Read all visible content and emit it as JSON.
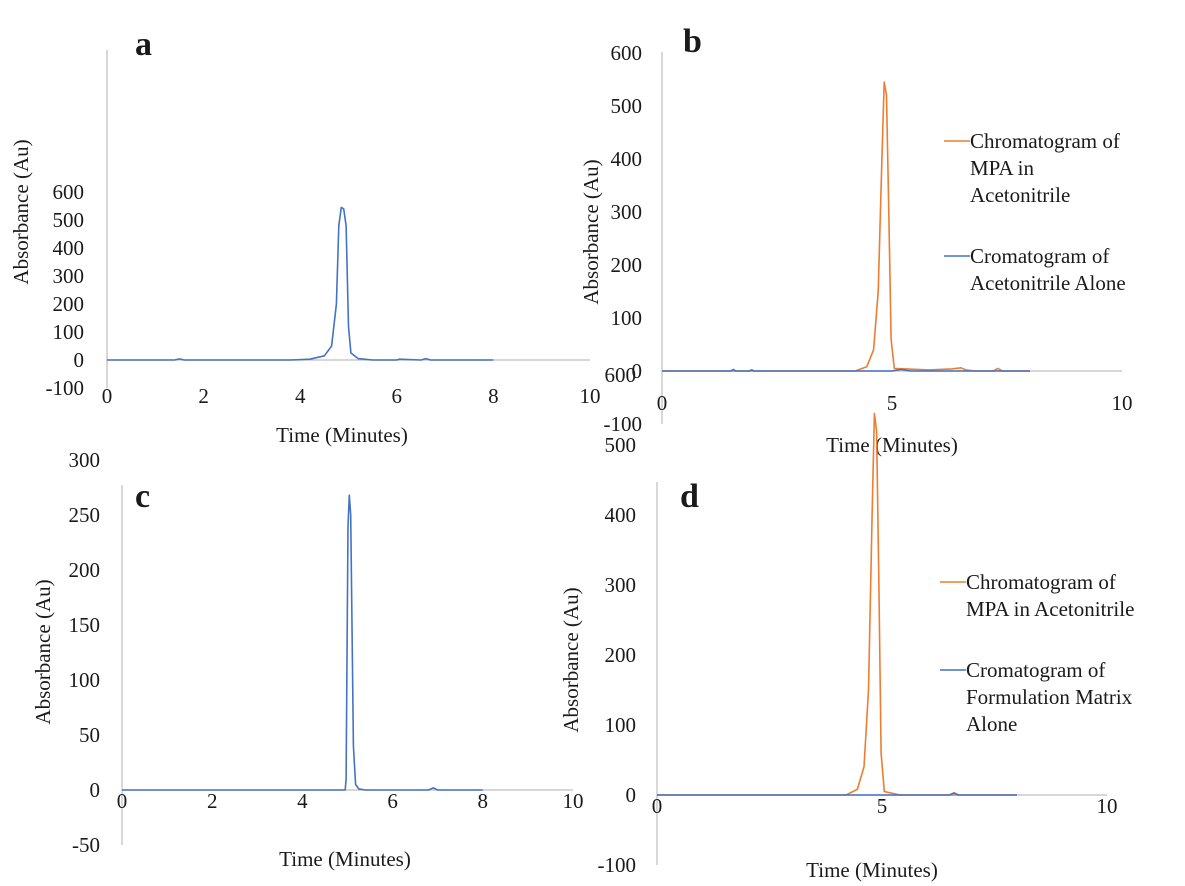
{
  "colors": {
    "orange": "#ed7d31",
    "blue": "#4472c4",
    "axis": "#bfbfbf"
  },
  "chart_data": [
    {
      "type": "line",
      "panel_label": "a",
      "xlabel": "Time (Minutes)",
      "ylabel": "Absorbance (Au)",
      "xlim": [
        0,
        10
      ],
      "ylim": [
        -100,
        600
      ],
      "x_ticks": [
        "0",
        "2",
        "4",
        "6",
        "8",
        "10"
      ],
      "y_ticks": [
        "600",
        "500",
        "400",
        "300",
        "200",
        "100",
        "0",
        "-100"
      ],
      "legend": "none",
      "grid": false,
      "series": [
        {
          "color": "#4472c4",
          "x": [
            0,
            1.4,
            1.5,
            1.6,
            3.8,
            4.2,
            4.5,
            4.65,
            4.75,
            4.8,
            4.85,
            4.9,
            4.95,
            5.0,
            5.05,
            5.2,
            5.5,
            6.0,
            6.05,
            6.5,
            6.6,
            6.7,
            8.0
          ],
          "y": [
            0,
            0,
            4,
            0,
            0,
            3,
            15,
            50,
            200,
            480,
            545,
            540,
            480,
            120,
            25,
            5,
            0,
            0,
            3,
            0,
            5,
            0,
            0
          ]
        }
      ]
    },
    {
      "type": "line",
      "panel_label": "b",
      "xlabel": "Time (Minutes)",
      "ylabel": "Absorbance (Au)",
      "xlim": [
        0,
        10
      ],
      "ylim": [
        -100,
        600
      ],
      "x_ticks": [
        "0",
        "5",
        "10"
      ],
      "y_ticks": [
        "600",
        "500",
        "400",
        "300",
        "200",
        "100",
        "0",
        "-100"
      ],
      "legend": "right",
      "grid": false,
      "series": [
        {
          "name": "Chromatogram of MPA in Acetonitrile",
          "legend_lines": [
            "Chromatogram of",
            "MPA in",
            "Acetonitrile"
          ],
          "color": "#ed7d31",
          "x": [
            0,
            4.2,
            4.45,
            4.6,
            4.7,
            4.78,
            4.83,
            4.88,
            4.93,
            4.98,
            5.05,
            5.3,
            5.8,
            6.3,
            6.5,
            6.6,
            6.8,
            7.2,
            7.3,
            7.4,
            7.6,
            8.0
          ],
          "y": [
            0,
            0,
            8,
            40,
            150,
            400,
            545,
            520,
            300,
            60,
            5,
            4,
            2,
            4,
            6,
            2,
            0,
            0,
            5,
            0,
            0,
            0
          ]
        },
        {
          "name": "Cromatogram of Acetonitrile Alone",
          "legend_lines": [
            "Cromatogram of",
            "Acetonitrile Alone"
          ],
          "color": "#4472c4",
          "x": [
            0,
            1.5,
            1.55,
            1.6,
            1.9,
            1.95,
            2.0,
            5.0,
            5.2,
            5.4,
            8.0
          ],
          "y": [
            0,
            0,
            3,
            0,
            0,
            2,
            0,
            0,
            3,
            0,
            0
          ]
        }
      ]
    },
    {
      "type": "line",
      "panel_label": "c",
      "xlabel": "Time (Minutes)",
      "ylabel": "Absorbance (Au)",
      "xlim": [
        0,
        10
      ],
      "ylim": [
        -50,
        300
      ],
      "x_ticks": [
        "0",
        "2",
        "4",
        "6",
        "8",
        "10"
      ],
      "y_ticks": [
        "300",
        "250",
        "200",
        "150",
        "100",
        "50",
        "0",
        "-50"
      ],
      "legend": "none",
      "grid": false,
      "series": [
        {
          "color": "#4472c4",
          "x": [
            0,
            4.95,
            4.97,
            4.99,
            5.01,
            5.04,
            5.07,
            5.1,
            5.13,
            5.18,
            5.25,
            5.4,
            6.8,
            6.9,
            7.0,
            8.0
          ],
          "y": [
            0,
            0,
            10,
            120,
            240,
            268,
            250,
            150,
            40,
            5,
            1,
            0,
            0,
            2,
            0,
            0
          ]
        }
      ]
    },
    {
      "type": "line",
      "panel_label": "d",
      "xlabel": "Time (Minutes)",
      "ylabel": "Absorbance (Au)",
      "xlim": [
        0,
        10
      ],
      "ylim": [
        -100,
        600
      ],
      "x_ticks": [
        "0",
        "5",
        "10"
      ],
      "y_ticks": [
        "600",
        "500",
        "400",
        "300",
        "200",
        "100",
        "0",
        "-100"
      ],
      "legend": "right",
      "grid": false,
      "series": [
        {
          "name": "Chromatogram of MPA in Acetonitrile",
          "legend_lines": [
            "Chromatogram of",
            "MPA in Acetonitrile"
          ],
          "color": "#ed7d31",
          "x": [
            0,
            4.2,
            4.45,
            4.6,
            4.7,
            4.78,
            4.83,
            4.88,
            4.93,
            4.98,
            5.05,
            5.4,
            8.0
          ],
          "y": [
            0,
            0,
            8,
            40,
            150,
            400,
            545,
            520,
            300,
            60,
            5,
            0,
            0
          ]
        },
        {
          "name": "Cromatogram of Formulation Matrix Alone",
          "legend_lines": [
            "Cromatogram of",
            "Formulation Matrix",
            "Alone"
          ],
          "color": "#4472c4",
          "x": [
            0,
            6.5,
            6.6,
            6.7,
            8.0
          ],
          "y": [
            0,
            0,
            3,
            0,
            0
          ]
        }
      ]
    }
  ]
}
